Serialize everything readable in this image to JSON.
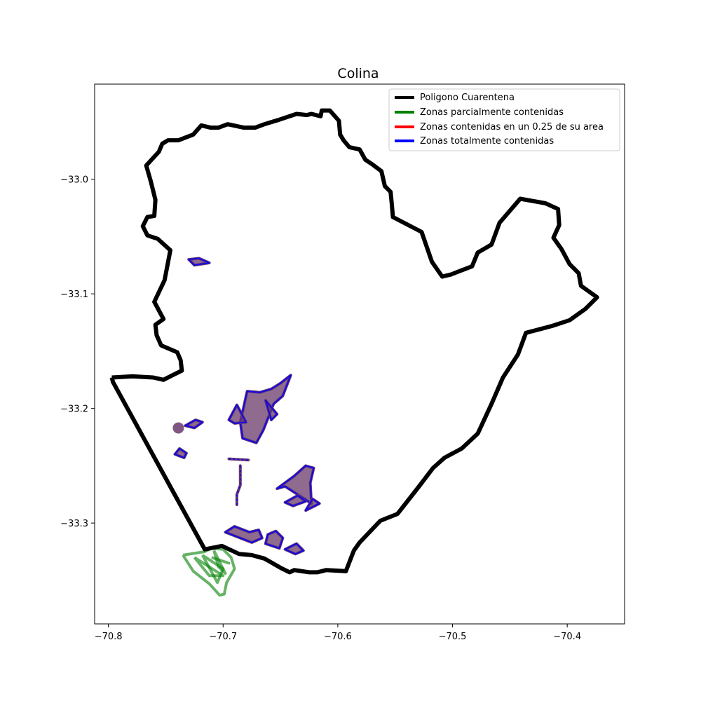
{
  "title": "Colina",
  "colors": {
    "boundary": "#000000",
    "partial": "#008000",
    "quarter": "#ff0000",
    "total": "#0000ff",
    "zone_fill": "#6b3a6b"
  },
  "legend": [
    {
      "label": "Poligono Cuarentena",
      "color": "#000000"
    },
    {
      "label": "Zonas parcialmente contenidas",
      "color": "#008000"
    },
    {
      "label": "Zonas contenidas en un 0.25 de su area",
      "color": "#ff0000"
    },
    {
      "label": "Zonas totalmente contenidas",
      "color": "#0000ff"
    }
  ],
  "x_ticks": [
    "−70.8",
    "−70.7",
    "−70.6",
    "−70.5",
    "−70.4"
  ],
  "y_ticks": [
    "−33.0",
    "−33.1",
    "−33.2",
    "−33.3"
  ],
  "chart_data": {
    "type": "map",
    "title": "Colina",
    "xlim": [
      -70.812,
      -70.35
    ],
    "ylim": [
      -33.388,
      -32.917
    ],
    "x_tick_values": [
      -70.8,
      -70.7,
      -70.6,
      -70.5,
      -70.4
    ],
    "y_tick_values": [
      -33.0,
      -33.1,
      -33.2,
      -33.3
    ],
    "legend_location": "upper right",
    "boundary": [
      [
        -70.797,
        -33.173
      ],
      [
        -70.779,
        -33.172
      ],
      [
        -70.761,
        -33.173
      ],
      [
        -70.752,
        -33.175
      ],
      [
        -70.742,
        -33.17
      ],
      [
        -70.736,
        -33.167
      ],
      [
        -70.737,
        -33.158
      ],
      [
        -70.74,
        -33.151
      ],
      [
        -70.754,
        -33.145
      ],
      [
        -70.758,
        -33.136
      ],
      [
        -70.759,
        -33.127
      ],
      [
        -70.752,
        -33.122
      ],
      [
        -70.76,
        -33.107
      ],
      [
        -70.751,
        -33.088
      ],
      [
        -70.746,
        -33.062
      ],
      [
        -70.757,
        -33.052
      ],
      [
        -70.766,
        -33.049
      ],
      [
        -70.77,
        -33.041
      ],
      [
        -70.766,
        -33.033
      ],
      [
        -70.76,
        -33.032
      ],
      [
        -70.759,
        -33.018
      ],
      [
        -70.763,
        -33.002
      ],
      [
        -70.767,
        -32.988
      ],
      [
        -70.756,
        -32.976
      ],
      [
        -70.753,
        -32.969
      ],
      [
        -70.748,
        -32.966
      ],
      [
        -70.739,
        -32.966
      ],
      [
        -70.726,
        -32.961
      ],
      [
        -70.719,
        -32.953
      ],
      [
        -70.711,
        -32.955
      ],
      [
        -70.704,
        -32.955
      ],
      [
        -70.696,
        -32.952
      ],
      [
        -70.682,
        -32.955
      ],
      [
        -70.672,
        -32.955
      ],
      [
        -70.664,
        -32.952
      ],
      [
        -70.651,
        -32.948
      ],
      [
        -70.636,
        -32.943
      ],
      [
        -70.627,
        -32.944
      ],
      [
        -70.623,
        -32.943
      ],
      [
        -70.615,
        -32.945
      ],
      [
        -70.614,
        -32.94
      ],
      [
        -70.607,
        -32.94
      ],
      [
        -70.599,
        -32.949
      ],
      [
        -70.598,
        -32.961
      ],
      [
        -70.595,
        -32.966
      ],
      [
        -70.59,
        -32.972
      ],
      [
        -70.581,
        -32.974
      ],
      [
        -70.576,
        -32.983
      ],
      [
        -70.57,
        -32.987
      ],
      [
        -70.562,
        -32.993
      ],
      [
        -70.559,
        -33.006
      ],
      [
        -70.554,
        -33.011
      ],
      [
        -70.553,
        -33.021
      ],
      [
        -70.552,
        -33.033
      ],
      [
        -70.527,
        -33.046
      ],
      [
        -70.518,
        -33.072
      ],
      [
        -70.509,
        -33.085
      ],
      [
        -70.501,
        -33.083
      ],
      [
        -70.496,
        -33.081
      ],
      [
        -70.483,
        -33.076
      ],
      [
        -70.478,
        -33.064
      ],
      [
        -70.466,
        -33.057
      ],
      [
        -70.459,
        -33.038
      ],
      [
        -70.441,
        -33.017
      ],
      [
        -70.419,
        -33.021
      ],
      [
        -70.408,
        -33.026
      ],
      [
        -70.407,
        -33.04
      ],
      [
        -70.412,
        -33.051
      ],
      [
        -70.405,
        -33.061
      ],
      [
        -70.398,
        -33.074
      ],
      [
        -70.39,
        -33.082
      ],
      [
        -70.388,
        -33.093
      ],
      [
        -70.374,
        -33.103
      ],
      [
        -70.384,
        -33.113
      ],
      [
        -70.398,
        -33.123
      ],
      [
        -70.413,
        -33.128
      ],
      [
        -70.436,
        -33.134
      ],
      [
        -70.443,
        -33.153
      ],
      [
        -70.456,
        -33.173
      ],
      [
        -70.466,
        -33.196
      ],
      [
        -70.478,
        -33.222
      ],
      [
        -70.492,
        -33.235
      ],
      [
        -70.507,
        -33.243
      ],
      [
        -70.517,
        -33.252
      ],
      [
        -70.53,
        -33.269
      ],
      [
        -70.548,
        -33.292
      ],
      [
        -70.563,
        -33.298
      ],
      [
        -70.581,
        -33.317
      ],
      [
        -70.586,
        -33.324
      ],
      [
        -70.593,
        -33.342
      ],
      [
        -70.61,
        -33.341
      ],
      [
        -70.618,
        -33.343
      ],
      [
        -70.625,
        -33.343
      ],
      [
        -70.638,
        -33.341
      ],
      [
        -70.642,
        -33.343
      ],
      [
        -70.65,
        -33.339
      ],
      [
        -70.664,
        -33.331
      ],
      [
        -70.675,
        -33.328
      ],
      [
        -70.686,
        -33.327
      ],
      [
        -70.701,
        -33.32
      ],
      [
        -70.716,
        -33.323
      ],
      [
        -70.796,
        -33.177
      ],
      [
        -70.797,
        -33.173
      ]
    ],
    "partial_zones": [
      [
        [
          -70.735,
          -33.328
        ],
        [
          -70.716,
          -33.325
        ],
        [
          -70.71,
          -33.322
        ],
        [
          -70.7,
          -33.323
        ],
        [
          -70.693,
          -33.33
        ],
        [
          -70.69,
          -33.34
        ],
        [
          -70.697,
          -33.352
        ],
        [
          -70.699,
          -33.362
        ],
        [
          -70.703,
          -33.363
        ],
        [
          -70.712,
          -33.353
        ],
        [
          -70.726,
          -33.342
        ]
      ],
      [
        [
          -70.718,
          -33.328
        ],
        [
          -70.7,
          -33.34
        ],
        [
          -70.705,
          -33.352
        ]
      ],
      [
        [
          -70.725,
          -33.33
        ],
        [
          -70.712,
          -33.346
        ],
        [
          -70.7,
          -33.346
        ]
      ],
      [
        [
          -70.71,
          -33.33
        ],
        [
          -70.695,
          -33.335
        ]
      ],
      [
        [
          -70.708,
          -33.324
        ],
        [
          -70.704,
          -33.338
        ],
        [
          -70.698,
          -33.344
        ]
      ]
    ],
    "contained_zones": [
      [
        [
          -70.685,
          -33.212
        ],
        [
          -70.679,
          -33.185
        ],
        [
          -70.668,
          -33.186
        ],
        [
          -70.658,
          -33.183
        ],
        [
          -70.65,
          -33.178
        ],
        [
          -70.641,
          -33.171
        ],
        [
          -70.648,
          -33.189
        ],
        [
          -70.656,
          -33.196
        ],
        [
          -70.665,
          -33.219
        ],
        [
          -70.671,
          -33.23
        ],
        [
          -70.683,
          -33.226
        ]
      ],
      [
        [
          -70.695,
          -33.21
        ],
        [
          -70.688,
          -33.197
        ],
        [
          -70.68,
          -33.212
        ],
        [
          -70.69,
          -33.213
        ]
      ],
      [
        [
          -70.663,
          -33.193
        ],
        [
          -70.653,
          -33.205
        ],
        [
          -70.658,
          -33.21
        ]
      ],
      [
        [
          -70.653,
          -33.27
        ],
        [
          -70.638,
          -33.259
        ],
        [
          -70.628,
          -33.25
        ],
        [
          -70.621,
          -33.252
        ],
        [
          -70.624,
          -33.265
        ],
        [
          -70.623,
          -33.283
        ],
        [
          -70.632,
          -33.277
        ],
        [
          -70.646,
          -33.268
        ]
      ],
      [
        [
          -70.646,
          -33.282
        ],
        [
          -70.635,
          -33.276
        ],
        [
          -70.628,
          -33.281
        ],
        [
          -70.639,
          -33.285
        ]
      ],
      [
        [
          -70.628,
          -33.289
        ],
        [
          -70.622,
          -33.279
        ],
        [
          -70.616,
          -33.283
        ]
      ],
      [
        [
          -70.698,
          -33.308
        ],
        [
          -70.69,
          -33.303
        ],
        [
          -70.677,
          -33.308
        ],
        [
          -70.669,
          -33.306
        ],
        [
          -70.666,
          -33.313
        ],
        [
          -70.675,
          -33.317
        ]
      ],
      [
        [
          -70.663,
          -33.318
        ],
        [
          -70.661,
          -33.31
        ],
        [
          -70.654,
          -33.307
        ],
        [
          -70.648,
          -33.313
        ],
        [
          -70.651,
          -33.322
        ]
      ],
      [
        [
          -70.646,
          -33.323
        ],
        [
          -70.636,
          -33.318
        ],
        [
          -70.63,
          -33.324
        ],
        [
          -70.637,
          -33.327
        ]
      ],
      [
        [
          -70.732,
          -33.239
        ],
        [
          -70.738,
          -33.235
        ],
        [
          -70.742,
          -33.24
        ],
        [
          -70.734,
          -33.243
        ]
      ],
      [
        [
          -70.733,
          -33.215
        ],
        [
          -70.724,
          -33.21
        ],
        [
          -70.718,
          -33.212
        ],
        [
          -70.725,
          -33.217
        ]
      ],
      [
        [
          -70.73,
          -33.07
        ],
        [
          -70.721,
          -33.069
        ],
        [
          -70.712,
          -33.073
        ],
        [
          -70.725,
          -33.075
        ]
      ]
    ],
    "contained_lines": [
      [
        [
          -70.695,
          -33.244
        ],
        [
          -70.678,
          -33.245
        ]
      ],
      [
        [
          -70.685,
          -33.25
        ],
        [
          -70.685,
          -33.267
        ],
        [
          -70.688,
          -33.275
        ],
        [
          -70.688,
          -33.284
        ]
      ]
    ],
    "contained_points": [
      [
        -70.739,
        -33.217
      ]
    ]
  }
}
